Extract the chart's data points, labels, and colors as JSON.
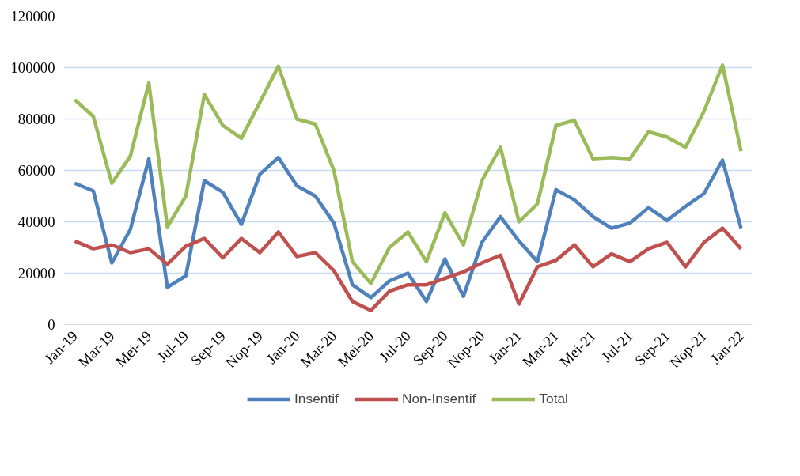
{
  "chart_data": {
    "type": "line",
    "categories": [
      "Jan-19",
      null,
      "Mar-19",
      null,
      "Mei-19",
      null,
      "Jul-19",
      null,
      "Sep-19",
      null,
      "Nop-19",
      null,
      "Jan-20",
      null,
      "Mar-20",
      null,
      "Mei-20",
      null,
      "Jul-20",
      null,
      "Sep-20",
      null,
      "Nop-20",
      null,
      "Jan-21",
      null,
      "Mar-21",
      null,
      "Mei-21",
      null,
      "Jul-21",
      null,
      "Sep-21",
      null,
      "Nop-21",
      null,
      "Jan-22"
    ],
    "series": [
      {
        "name": "Insentif",
        "color": "#4f81bd",
        "values": [
          55000,
          52000,
          24000,
          37000,
          64500,
          14500,
          19000,
          56000,
          51500,
          39000,
          58500,
          65000,
          54000,
          50000,
          39500,
          15500,
          10500,
          17000,
          20000,
          9000,
          25500,
          11000,
          32000,
          42000,
          32500,
          24500,
          52500,
          48500,
          42000,
          37500,
          39500,
          45500,
          40500,
          46000,
          51000,
          64000,
          37500
        ]
      },
      {
        "name": "Non-Insentif",
        "color": "#c0504d",
        "values": [
          32500,
          29500,
          31000,
          28000,
          29500,
          23500,
          30500,
          33500,
          26000,
          33500,
          28000,
          36000,
          26500,
          28000,
          21000,
          9000,
          5500,
          13000,
          15500,
          15500,
          18000,
          20500,
          24000,
          27000,
          8000,
          22500,
          25000,
          31000,
          22500,
          27500,
          24500,
          29500,
          32000,
          22500,
          32000,
          37500,
          29500
        ]
      },
      {
        "name": "Total",
        "color": "#9bbb59",
        "values": [
          87500,
          81000,
          55000,
          65500,
          94000,
          38000,
          50000,
          89500,
          77500,
          72500,
          86500,
          100500,
          80000,
          78000,
          60000,
          24500,
          16000,
          30000,
          36000,
          24500,
          43500,
          31000,
          56000,
          69000,
          40000,
          47000,
          77500,
          79500,
          64500,
          65000,
          64500,
          75000,
          73000,
          69000,
          83000,
          101000,
          67500
        ]
      }
    ],
    "ylim": [
      0,
      120000
    ],
    "yticks": [
      0,
      20000,
      40000,
      60000,
      80000,
      100000,
      120000
    ],
    "grid": "y",
    "legend": "bottom",
    "marker": "none",
    "line_style": "solid"
  }
}
